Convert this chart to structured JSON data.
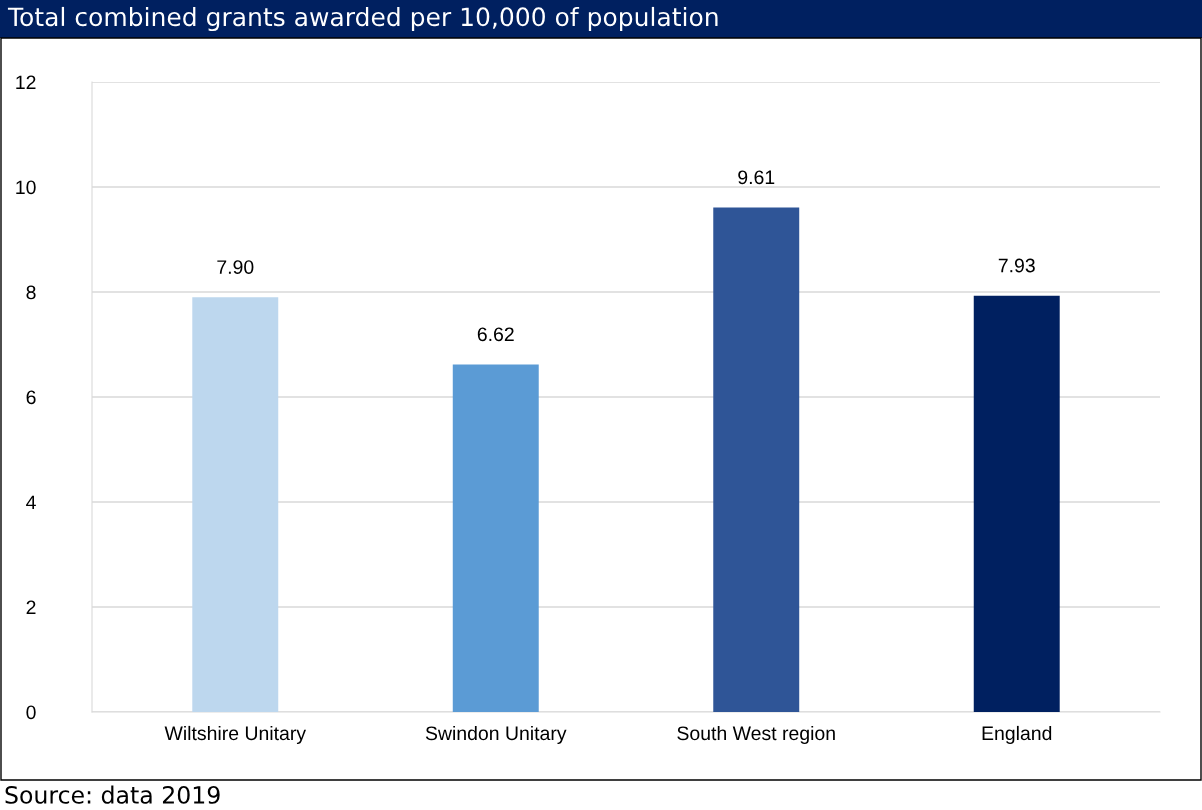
{
  "chart_data": {
    "type": "bar",
    "title": "Total combined grants awarded per 10,000 of population",
    "categories": [
      "Wiltshire Unitary",
      "Swindon Unitary",
      "South West region",
      "England"
    ],
    "values": [
      7.9,
      6.62,
      9.61,
      7.93
    ],
    "colors": [
      "#bdd7ee",
      "#5b9bd5",
      "#2f5597",
      "#002060"
    ],
    "value_labels": [
      "7.90",
      "6.62",
      "9.61",
      "7.93"
    ],
    "ylim": [
      0,
      12
    ],
    "yticks": [
      0,
      2,
      4,
      6,
      8,
      10,
      12
    ],
    "grid": "y",
    "annotations": [
      "Source: data 2019"
    ]
  }
}
